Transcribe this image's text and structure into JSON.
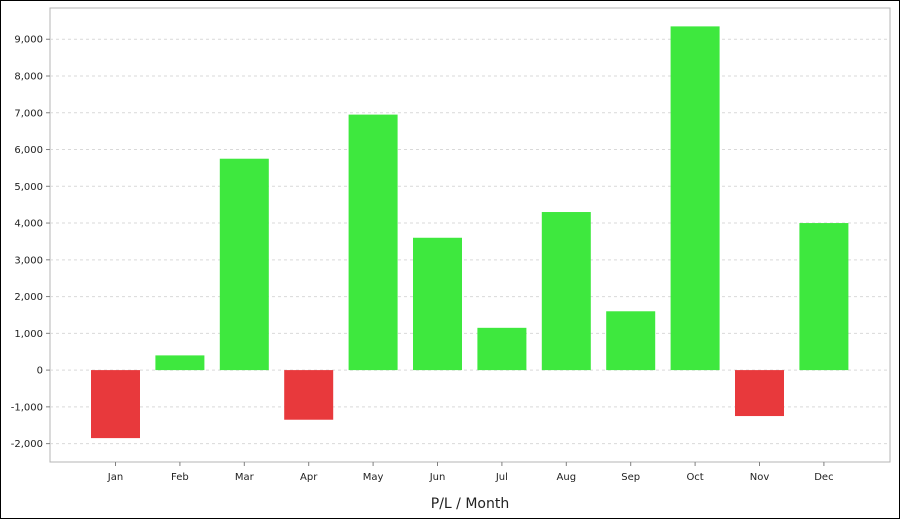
{
  "chart_data": {
    "type": "bar",
    "title": "",
    "xlabel": "P/L / Month",
    "ylabel": "",
    "categories": [
      "Jan",
      "Feb",
      "Mar",
      "Apr",
      "May",
      "Jun",
      "Jul",
      "Aug",
      "Sep",
      "Oct",
      "Nov",
      "Dec"
    ],
    "values": [
      -1850,
      400,
      5750,
      -1350,
      6950,
      3600,
      1150,
      4300,
      1600,
      9350,
      -1250,
      4000
    ],
    "ylim": [
      -2500,
      9850
    ],
    "yticks": [
      -2000,
      -1000,
      0,
      1000,
      2000,
      3000,
      4000,
      5000,
      6000,
      7000,
      8000,
      9000
    ],
    "ytick_labels": [
      "-2,000",
      "-1,000",
      "0",
      "1,000",
      "2,000",
      "3,000",
      "4,000",
      "5,000",
      "6,000",
      "7,000",
      "8,000",
      "9,000"
    ],
    "grid": true,
    "legend": "none",
    "colors": {
      "positive": "#3ee83e",
      "negative": "#e8393c"
    }
  }
}
